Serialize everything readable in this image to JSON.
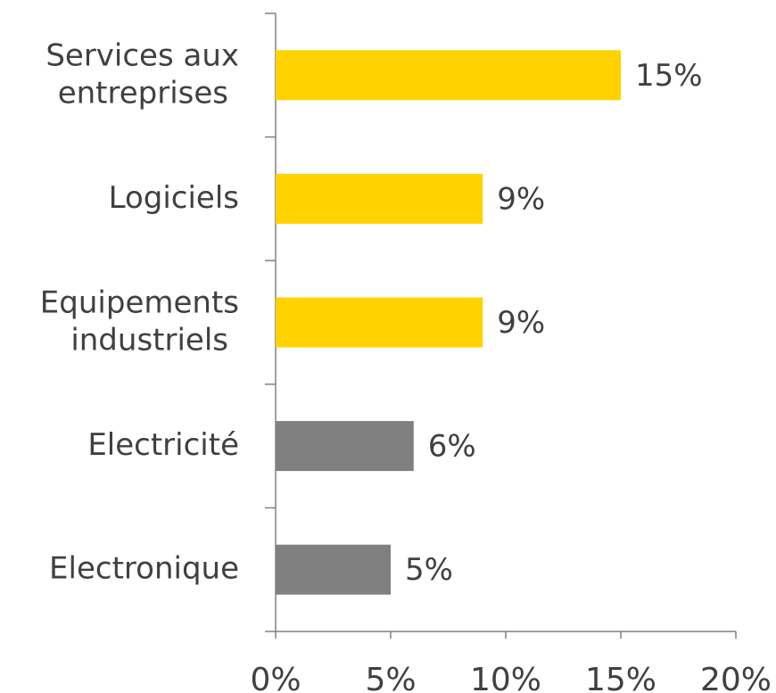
{
  "chart_data": {
    "type": "barh",
    "categories": [
      "Services aux\nentreprises",
      "Logiciels",
      "Equipements\nindustriels",
      "Electricité",
      "Electronique"
    ],
    "values": [
      15,
      9,
      9,
      6,
      5
    ],
    "value_labels": [
      "15%",
      "9%",
      "9%",
      "6%",
      "5%"
    ],
    "colors": [
      "#ffd200",
      "#ffd200",
      "#ffd200",
      "#808080",
      "#808080"
    ],
    "xlim": [
      0,
      20
    ],
    "xticks": [
      {
        "value": 0,
        "label": "0%"
      },
      {
        "value": 5,
        "label": "5%"
      },
      {
        "value": 10,
        "label": "10%"
      },
      {
        "value": 15,
        "label": "15%"
      },
      {
        "value": 20,
        "label": "20%"
      }
    ],
    "grid": false
  }
}
